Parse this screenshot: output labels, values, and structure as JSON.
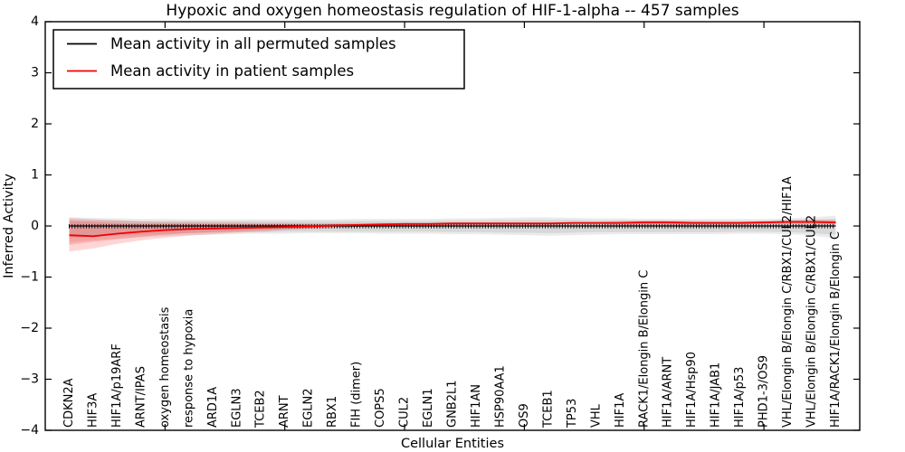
{
  "figure": {
    "title": "Hypoxic and oxygen homeostasis regulation of HIF-1-alpha -- 457 samples",
    "xlabel": "Cellular Entities",
    "ylabel": "Inferred Activity",
    "background": "#ffffff",
    "spine_color": "#000000"
  },
  "legend": {
    "position": "upper-left",
    "items": [
      {
        "label": "Mean activity in all permuted samples",
        "color": "#000000"
      },
      {
        "label": "Mean activity in patient samples",
        "color": "#f40000"
      }
    ]
  },
  "chart_data": {
    "type": "line",
    "title": "Hypoxic and oxygen homeostasis regulation of HIF-1-alpha -- 457 samples",
    "xlabel": "Cellular Entities",
    "ylabel": "Inferred Activity",
    "xlim": [
      0,
      34
    ],
    "ylim": [
      -4,
      4
    ],
    "grid": false,
    "legend_position": "upper-left",
    "y_tick_values": [
      4,
      3,
      2,
      1,
      0,
      -1,
      -2,
      -3,
      -4
    ],
    "y_tick_labels": [
      "4",
      "3",
      "2",
      "1",
      "0",
      "−1",
      "−2",
      "−3",
      "−4"
    ],
    "x_major_tick_positions": [
      5,
      10,
      15,
      20,
      25,
      30
    ],
    "categories": [
      "CDKN2A",
      "HIF3A",
      "HIF1A/p19ARF",
      "ARNT/IPAS",
      "oxygen homeostasis",
      "response to hypoxia",
      "ARD1A",
      "EGLN3",
      "TCEB2",
      "ARNT",
      "EGLN2",
      "RBX1",
      "FIH (dimer)",
      "COPS5",
      "CUL2",
      "EGLN1",
      "GNB2L1",
      "HIF1AN",
      "HSP90AA1",
      "OS9",
      "TCEB1",
      "TP53",
      "VHL",
      "HIF1A",
      "RACK1/Elongin B/Elongin C",
      "HIF1A/ARNT",
      "HIF1A/Hsp90",
      "HIF1A/JAB1",
      "HIF1A/p53",
      "PHD1-3/OS9",
      "VHL/Elongin B/Elongin C/RBX1/CUL2/HIF1A",
      "VHL/Elongin B/Elongin C/RBX1/CUL2",
      "HIF1A/RACK1/Elongin B/Elongin C"
    ],
    "series": [
      {
        "name": "Mean activity in all permuted samples",
        "color": "#000000",
        "style": "solid-with-comb-markers",
        "values": [
          0,
          0,
          0,
          0,
          0,
          0,
          0,
          0,
          0,
          0,
          0,
          0,
          0,
          0,
          0,
          0,
          0,
          0,
          0,
          0,
          0,
          0,
          0,
          0,
          0,
          0,
          0,
          0,
          0,
          0,
          0,
          0,
          0
        ]
      },
      {
        "name": "Mean activity in patient samples",
        "color": "#f40000",
        "style": "solid",
        "values": [
          -0.18,
          -0.2,
          -0.15,
          -0.11,
          -0.08,
          -0.06,
          -0.05,
          -0.04,
          -0.03,
          -0.02,
          -0.01,
          0.01,
          0.02,
          0.03,
          0.04,
          0.04,
          0.05,
          0.05,
          0.05,
          0.05,
          0.05,
          0.06,
          0.06,
          0.06,
          0.07,
          0.07,
          0.06,
          0.06,
          0.06,
          0.07,
          0.08,
          0.08,
          0.07
        ]
      }
    ],
    "bands": [
      {
        "name": "permuted-ci-outer",
        "color": "#000000",
        "opacity": 0.08,
        "upper": [
          0.17,
          0.16,
          0.15,
          0.14,
          0.14,
          0.13,
          0.13,
          0.13,
          0.13,
          0.13,
          0.13,
          0.13,
          0.14,
          0.14,
          0.14,
          0.14,
          0.15,
          0.15,
          0.16,
          0.17,
          0.17,
          0.16,
          0.15,
          0.15,
          0.14,
          0.14,
          0.14,
          0.14,
          0.14,
          0.14,
          0.15,
          0.17,
          0.2
        ],
        "lower": [
          -0.32,
          -0.28,
          -0.25,
          -0.22,
          -0.2,
          -0.18,
          -0.17,
          -0.16,
          -0.15,
          -0.15,
          -0.14,
          -0.14,
          -0.14,
          -0.15,
          -0.15,
          -0.15,
          -0.16,
          -0.16,
          -0.17,
          -0.18,
          -0.19,
          -0.18,
          -0.17,
          -0.16,
          -0.16,
          -0.16,
          -0.16,
          -0.16,
          -0.15,
          -0.15,
          -0.16,
          -0.19,
          -0.24
        ]
      },
      {
        "name": "permuted-ci-inner",
        "color": "#000000",
        "opacity": 0.08,
        "upper": [
          0.12,
          0.11,
          0.11,
          0.1,
          0.1,
          0.1,
          0.1,
          0.1,
          0.1,
          0.1,
          0.1,
          0.1,
          0.1,
          0.1,
          0.1,
          0.1,
          0.11,
          0.11,
          0.12,
          0.12,
          0.12,
          0.12,
          0.11,
          0.11,
          0.1,
          0.1,
          0.1,
          0.1,
          0.1,
          0.1,
          0.11,
          0.12,
          0.14
        ],
        "lower": [
          -0.24,
          -0.21,
          -0.19,
          -0.17,
          -0.15,
          -0.14,
          -0.13,
          -0.12,
          -0.12,
          -0.11,
          -0.11,
          -0.11,
          -0.11,
          -0.11,
          -0.11,
          -0.11,
          -0.12,
          -0.12,
          -0.13,
          -0.13,
          -0.14,
          -0.13,
          -0.12,
          -0.12,
          -0.12,
          -0.12,
          -0.12,
          -0.12,
          -0.11,
          -0.11,
          -0.12,
          -0.14,
          -0.17
        ]
      },
      {
        "name": "patient-ci-outer",
        "color": "#ff0000",
        "opacity": 0.16,
        "upper": [
          0.16,
          0.13,
          0.11,
          0.09,
          0.08,
          0.08,
          0.07,
          0.07,
          0.06,
          0.06,
          0.05,
          0.05,
          0.06,
          0.06,
          0.06,
          0.06,
          0.07,
          0.07,
          0.07,
          0.07,
          0.07,
          0.08,
          0.08,
          0.1,
          0.11,
          0.11,
          0.1,
          0.09,
          0.09,
          0.1,
          0.12,
          0.13,
          0.12
        ],
        "lower": [
          -0.5,
          -0.44,
          -0.35,
          -0.28,
          -0.23,
          -0.19,
          -0.16,
          -0.13,
          -0.11,
          -0.08,
          -0.06,
          -0.04,
          -0.02,
          -0.01,
          0.0,
          0.01,
          0.02,
          0.02,
          0.02,
          0.02,
          0.02,
          0.03,
          0.03,
          0.02,
          0.02,
          0.02,
          0.02,
          0.02,
          0.02,
          0.03,
          0.03,
          0.03,
          0.02
        ]
      },
      {
        "name": "patient-ci-inner",
        "color": "#ff0000",
        "opacity": 0.16,
        "upper": [
          0.1,
          0.08,
          0.06,
          0.05,
          0.05,
          0.05,
          0.04,
          0.04,
          0.04,
          0.04,
          0.04,
          0.04,
          0.04,
          0.05,
          0.05,
          0.05,
          0.06,
          0.06,
          0.06,
          0.06,
          0.06,
          0.07,
          0.07,
          0.08,
          0.09,
          0.09,
          0.08,
          0.08,
          0.08,
          0.08,
          0.1,
          0.1,
          0.09
        ],
        "lower": [
          -0.37,
          -0.31,
          -0.26,
          -0.21,
          -0.17,
          -0.14,
          -0.12,
          -0.1,
          -0.08,
          -0.06,
          -0.04,
          -0.02,
          -0.01,
          0.0,
          0.01,
          0.02,
          0.02,
          0.03,
          0.03,
          0.03,
          0.03,
          0.04,
          0.04,
          0.03,
          0.03,
          0.03,
          0.03,
          0.03,
          0.03,
          0.04,
          0.05,
          0.05,
          0.04
        ]
      }
    ]
  }
}
